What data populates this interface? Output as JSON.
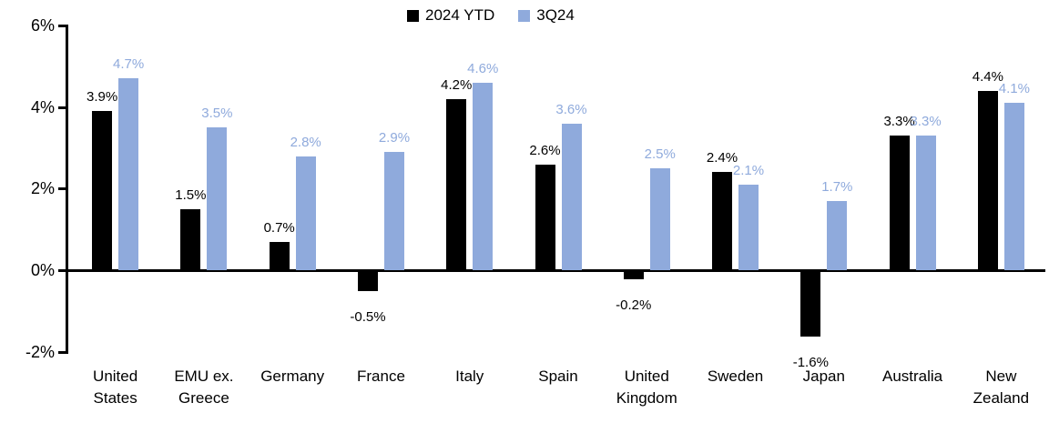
{
  "chart_data": {
    "type": "bar",
    "title": "",
    "xlabel": "",
    "ylabel": "",
    "categories": [
      "United States",
      "EMU ex. Greece",
      "Germany",
      "France",
      "Italy",
      "Spain",
      "United Kingdom",
      "Sweden",
      "Japan",
      "Australia",
      "New Zealand"
    ],
    "series": [
      {
        "name": "2024 YTD",
        "color": "#000000",
        "values": [
          3.9,
          1.5,
          0.7,
          -0.5,
          4.2,
          2.6,
          -0.2,
          2.4,
          -1.6,
          3.3,
          4.4
        ],
        "labels": [
          "3.9%",
          "1.5%",
          "0.7%",
          "-0.5%",
          "4.2%",
          "2.6%",
          "-0.2%",
          "2.4%",
          "-1.6%",
          "3.3%",
          "4.4%"
        ]
      },
      {
        "name": "3Q24",
        "color": "#8FAADC",
        "values": [
          4.7,
          3.5,
          2.8,
          2.9,
          4.6,
          3.6,
          2.5,
          2.1,
          1.7,
          3.3,
          4.1
        ],
        "labels": [
          "4.7%",
          "3.5%",
          "2.8%",
          "2.9%",
          "4.6%",
          "3.6%",
          "2.5%",
          "2.1%",
          "1.7%",
          "3.3%",
          "4.1%"
        ]
      }
    ],
    "y_axis": {
      "min": -2,
      "max": 6,
      "ticks": [
        {
          "value": 6,
          "label": "6%"
        },
        {
          "value": 4,
          "label": "4%"
        },
        {
          "value": 2,
          "label": "2%"
        },
        {
          "value": 0,
          "label": "0%"
        },
        {
          "value": -2,
          "label": "-2%"
        }
      ]
    },
    "legend": {
      "position": "top",
      "entries": [
        {
          "label": "2024 YTD",
          "color": "#000000"
        },
        {
          "label": "3Q24",
          "color": "#8FAADC"
        }
      ]
    },
    "grid": false,
    "background": "#FFFFFF",
    "axis_color": "#000000"
  }
}
